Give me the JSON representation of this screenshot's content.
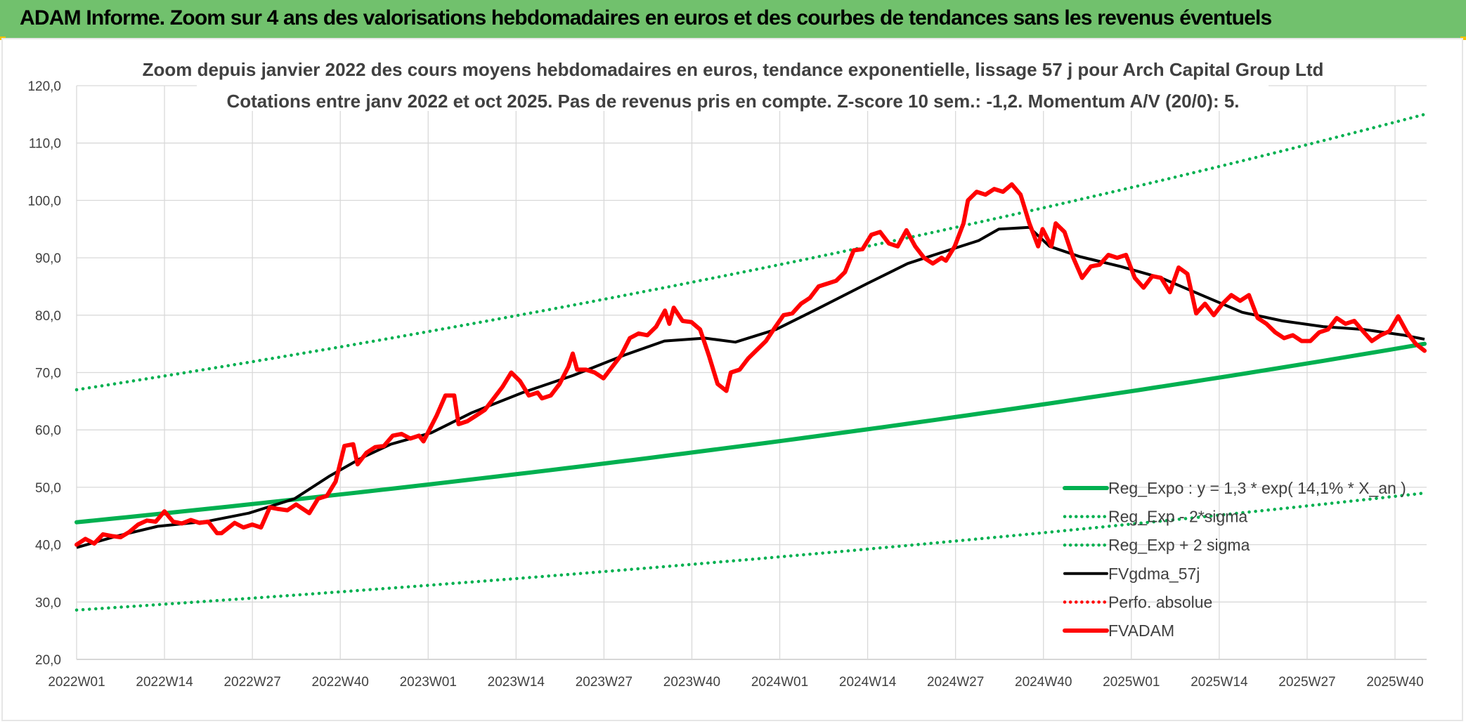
{
  "header": {
    "title": "ADAM Informe. Zoom sur 4 ans des valorisations hebdomadaires en euros et des courbes de tendances sans les revenus éventuels"
  },
  "colors": {
    "header_bg": "#71c16d",
    "green": "#00b050",
    "red": "#ff0000",
    "black": "#000000",
    "grid": "#d9d9d9"
  },
  "chart_data": {
    "type": "line",
    "title_line1": "Zoom depuis janvier 2022 des cours moyens hebdomadaires en euros, tendance exponentielle, lissage 57 j pour Arch Capital Group Ltd",
    "title_line2": "Cotations entre janv 2022 et oct 2025. Pas de revenus pris en compte. Z-score 10 sem.: -1,2. Momentum A/V (20/0): 5.",
    "x_ticks": [
      "2022W01",
      "2022W14",
      "2022W27",
      "2022W40",
      "2023W01",
      "2023W14",
      "2023W27",
      "2023W40",
      "2024W01",
      "2024W14",
      "2024W27",
      "2024W40",
      "2025W01",
      "2025W14",
      "2025W27",
      "2025W40"
    ],
    "y_ticks": [
      "20,0",
      "30,0",
      "40,0",
      "50,0",
      "60,0",
      "70,0",
      "80,0",
      "90,0",
      "100,0",
      "110,0",
      "120,0"
    ],
    "ylim": [
      20,
      120
    ],
    "n_weeks": 198,
    "legend": [
      {
        "label": "Reg_Expo : y = 1,3 * exp( 14,1% *  X_an )",
        "color": "#00b050",
        "style": "solid-thick"
      },
      {
        "label": "Reg_Exp - 2*sigma",
        "color": "#00b050",
        "style": "dotted"
      },
      {
        "label": "Reg_Exp + 2 sigma",
        "color": "#00b050",
        "style": "dotted"
      },
      {
        "label": "FVgdma_57j",
        "color": "#000000",
        "style": "solid"
      },
      {
        "label": "Perfo. absolue",
        "color": "#ff0000",
        "style": "dotted"
      },
      {
        "label": "FVADAM",
        "color": "#ff0000",
        "style": "solid-thick"
      }
    ],
    "series": [
      {
        "name": "Reg_Expo",
        "type": "exponential",
        "start": 43.9,
        "end": 75.0
      },
      {
        "name": "Reg_Exp - 2*sigma",
        "type": "exponential",
        "start": 28.6,
        "end": 49.0
      },
      {
        "name": "Reg_Exp + 2 sigma",
        "type": "exponential",
        "start": 67.0,
        "end": 115.0
      },
      {
        "name": "FVgdma_57j",
        "points": [
          [
            0,
            39.5
          ],
          [
            8,
            41.5
          ],
          [
            16,
            43.2
          ],
          [
            26,
            44.1
          ],
          [
            34,
            45.5
          ],
          [
            43,
            48
          ],
          [
            50,
            52
          ],
          [
            56,
            55
          ],
          [
            62,
            57.5
          ],
          [
            70,
            59.5
          ],
          [
            78,
            63
          ],
          [
            88,
            66.5
          ],
          [
            98,
            69.5
          ],
          [
            108,
            73
          ],
          [
            116,
            75.5
          ],
          [
            124,
            76
          ],
          [
            130,
            75.3
          ],
          [
            138,
            77.5
          ],
          [
            146,
            81
          ],
          [
            156,
            85.5
          ],
          [
            164,
            89
          ],
          [
            172,
            91.3
          ],
          [
            178,
            93
          ],
          [
            182,
            95
          ],
          [
            188,
            95.3
          ],
          [
            192,
            92
          ],
          [
            198,
            90.2
          ],
          [
            206,
            88.5
          ],
          [
            214,
            86.5
          ],
          [
            222,
            83.5
          ],
          [
            230,
            80.5
          ],
          [
            238,
            79
          ],
          [
            246,
            78
          ],
          [
            254,
            77.5
          ],
          [
            262,
            76.5
          ],
          [
            266,
            75.8
          ]
        ]
      },
      {
        "name": "FVADAM",
        "points": [
          [
            0,
            40
          ],
          [
            2,
            41
          ],
          [
            4,
            40.2
          ],
          [
            6,
            41.8
          ],
          [
            8,
            41.5
          ],
          [
            10,
            41.3
          ],
          [
            12,
            42.2
          ],
          [
            14,
            43.5
          ],
          [
            16,
            44.2
          ],
          [
            18,
            44
          ],
          [
            20,
            45.8
          ],
          [
            22,
            44
          ],
          [
            24,
            43.7
          ],
          [
            26,
            44.3
          ],
          [
            28,
            43.8
          ],
          [
            30,
            44
          ],
          [
            32,
            42
          ],
          [
            33,
            42
          ],
          [
            36,
            43.8
          ],
          [
            38,
            43
          ],
          [
            40,
            43.5
          ],
          [
            42,
            43
          ],
          [
            44,
            46.5
          ],
          [
            46,
            46.2
          ],
          [
            48,
            46
          ],
          [
            50,
            47
          ],
          [
            52,
            46
          ],
          [
            53,
            45.5
          ],
          [
            55,
            48
          ],
          [
            57,
            48.5
          ],
          [
            59,
            51
          ],
          [
            61,
            57.2
          ],
          [
            63,
            57.5
          ],
          [
            64,
            54
          ],
          [
            66,
            56
          ],
          [
            68,
            57
          ],
          [
            70,
            57.2
          ],
          [
            72,
            59
          ],
          [
            74,
            59.3
          ],
          [
            76,
            58.5
          ],
          [
            78,
            59
          ],
          [
            79,
            58
          ],
          [
            82,
            62.5
          ],
          [
            84,
            66
          ],
          [
            86,
            66
          ],
          [
            87,
            61
          ],
          [
            89,
            61.5
          ],
          [
            91,
            62.5
          ],
          [
            93,
            63.5
          ],
          [
            95,
            65.5
          ],
          [
            97,
            67.5
          ],
          [
            99,
            70
          ],
          [
            101,
            68.5
          ],
          [
            103,
            66
          ],
          [
            105,
            66.5
          ],
          [
            106,
            65.5
          ],
          [
            108,
            66
          ],
          [
            110,
            68
          ],
          [
            112,
            71
          ],
          [
            113,
            73.3
          ],
          [
            114,
            70.5
          ],
          [
            116,
            70.5
          ],
          [
            118,
            70
          ],
          [
            120,
            69
          ],
          [
            122,
            71
          ],
          [
            124,
            73
          ],
          [
            126,
            76
          ],
          [
            128,
            76.8
          ],
          [
            130,
            76.5
          ],
          [
            132,
            78
          ],
          [
            134,
            80.8
          ],
          [
            135,
            78.5
          ],
          [
            136,
            81.3
          ],
          [
            138,
            79
          ],
          [
            140,
            78.8
          ],
          [
            142,
            77.5
          ],
          [
            144,
            73
          ],
          [
            146,
            68
          ],
          [
            148,
            66.8
          ],
          [
            149,
            70
          ],
          [
            151,
            70.5
          ],
          [
            153,
            72.5
          ],
          [
            155,
            74
          ],
          [
            157,
            75.5
          ],
          [
            159,
            77.8
          ],
          [
            161,
            80
          ],
          [
            163,
            80.3
          ],
          [
            165,
            82
          ],
          [
            167,
            83
          ],
          [
            169,
            85
          ],
          [
            171,
            85.5
          ],
          [
            173,
            86
          ],
          [
            175,
            87.5
          ],
          [
            177,
            91.3
          ],
          [
            179,
            91.5
          ],
          [
            181,
            94
          ],
          [
            183,
            94.5
          ],
          [
            185,
            92.5
          ],
          [
            187,
            92
          ],
          [
            189,
            94.8
          ],
          [
            191,
            92
          ],
          [
            193,
            90
          ],
          [
            195,
            89
          ],
          [
            197,
            90
          ],
          [
            198,
            89.5
          ],
          [
            200,
            92
          ],
          [
            202,
            96
          ],
          [
            203,
            100
          ],
          [
            205,
            101.5
          ],
          [
            207,
            101
          ],
          [
            209,
            102
          ],
          [
            211,
            101.5
          ],
          [
            213,
            102.8
          ],
          [
            215,
            101
          ],
          [
            217,
            96
          ],
          [
            219,
            92
          ],
          [
            220,
            95
          ],
          [
            222,
            92
          ],
          [
            223,
            96
          ],
          [
            225,
            94.5
          ],
          [
            227,
            90
          ],
          [
            229,
            86.5
          ],
          [
            231,
            88.5
          ],
          [
            233,
            88.8
          ],
          [
            235,
            90.5
          ],
          [
            237,
            90
          ],
          [
            239,
            90.5
          ],
          [
            241,
            86.5
          ],
          [
            243,
            84.8
          ],
          [
            245,
            86.8
          ],
          [
            247,
            86.5
          ],
          [
            249,
            84
          ],
          [
            251,
            88.3
          ],
          [
            253,
            87.2
          ],
          [
            255,
            80.3
          ],
          [
            257,
            82
          ],
          [
            259,
            80
          ],
          [
            261,
            82
          ],
          [
            263,
            83.5
          ],
          [
            265,
            82.5
          ],
          [
            267,
            83.5
          ],
          [
            269,
            79.5
          ],
          [
            271,
            78.5
          ],
          [
            273,
            77
          ],
          [
            275,
            76
          ],
          [
            277,
            76.5
          ],
          [
            279,
            75.5
          ],
          [
            281,
            75.5
          ],
          [
            283,
            77
          ],
          [
            285,
            77.5
          ],
          [
            287,
            79.5
          ],
          [
            289,
            78.5
          ],
          [
            291,
            79
          ],
          [
            293,
            77.2
          ],
          [
            295,
            75.5
          ],
          [
            297,
            76.5
          ],
          [
            299,
            77.2
          ],
          [
            301,
            79.8
          ],
          [
            303,
            77
          ],
          [
            305,
            75
          ],
          [
            307,
            73.8
          ]
        ]
      }
    ]
  }
}
